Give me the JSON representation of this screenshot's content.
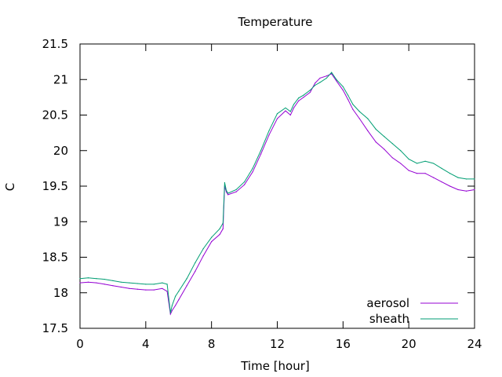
{
  "chart_data": {
    "type": "line",
    "title": "Temperature",
    "xlabel": "Time [hour]",
    "ylabel": "C",
    "xlim": [
      0,
      24
    ],
    "ylim": [
      17.5,
      21.5
    ],
    "xticks": [
      0,
      4,
      8,
      12,
      16,
      20,
      24
    ],
    "yticks": [
      17.5,
      18,
      18.5,
      19,
      19.5,
      20,
      20.5,
      21,
      21.5
    ],
    "ytick_labels": [
      "17.5",
      "18",
      "18.5",
      "19",
      "19.5",
      "20",
      "20.5",
      "21",
      "21.5"
    ],
    "legend_position": "bottom-right",
    "grid": false,
    "series": [
      {
        "name": "aerosol",
        "color": "#9400d3",
        "x": [
          0,
          0.5,
          1.0,
          1.5,
          2.0,
          2.5,
          3.0,
          3.5,
          4.0,
          4.5,
          5.0,
          5.3,
          5.5,
          5.6,
          5.8,
          6.0,
          6.5,
          7.0,
          7.5,
          8.0,
          8.5,
          8.7,
          8.8,
          8.9,
          9.0,
          9.5,
          10.0,
          10.5,
          11.0,
          11.5,
          12.0,
          12.5,
          12.8,
          13.0,
          13.3,
          13.6,
          14.0,
          14.3,
          14.6,
          15.0,
          15.3,
          15.6,
          16.0,
          16.3,
          16.6,
          17.0,
          17.5,
          18.0,
          18.5,
          19.0,
          19.5,
          20.0,
          20.5,
          21.0,
          21.5,
          22.0,
          22.5,
          23.0,
          23.5,
          24.0
        ],
        "y": [
          18.14,
          18.15,
          18.14,
          18.12,
          18.1,
          18.08,
          18.06,
          18.05,
          18.04,
          18.04,
          18.06,
          18.02,
          17.7,
          17.75,
          17.82,
          17.9,
          18.1,
          18.3,
          18.52,
          18.72,
          18.82,
          18.9,
          19.5,
          19.42,
          19.38,
          19.42,
          19.52,
          19.7,
          19.95,
          20.22,
          20.45,
          20.56,
          20.5,
          20.6,
          20.7,
          20.75,
          20.82,
          20.95,
          21.02,
          21.05,
          21.08,
          20.98,
          20.85,
          20.72,
          20.58,
          20.45,
          20.28,
          20.12,
          20.02,
          19.9,
          19.82,
          19.72,
          19.68,
          19.68,
          19.62,
          19.56,
          19.5,
          19.45,
          19.43,
          19.45
        ]
      },
      {
        "name": "sheath",
        "color": "#009e73",
        "x": [
          0,
          0.5,
          1.0,
          1.5,
          2.0,
          2.5,
          3.0,
          3.5,
          4.0,
          4.5,
          5.0,
          5.3,
          5.5,
          5.6,
          5.8,
          6.0,
          6.5,
          7.0,
          7.5,
          8.0,
          8.5,
          8.7,
          8.8,
          8.9,
          9.0,
          9.5,
          10.0,
          10.5,
          11.0,
          11.5,
          12.0,
          12.5,
          12.8,
          13.0,
          13.3,
          13.6,
          14.0,
          14.3,
          14.6,
          15.0,
          15.3,
          15.6,
          16.0,
          16.3,
          16.6,
          17.0,
          17.5,
          18.0,
          18.5,
          19.0,
          19.5,
          20.0,
          20.5,
          21.0,
          21.5,
          22.0,
          22.5,
          23.0,
          23.5,
          24.0
        ],
        "y": [
          18.2,
          18.21,
          18.2,
          18.19,
          18.17,
          18.15,
          18.14,
          18.13,
          18.12,
          18.12,
          18.14,
          18.12,
          17.72,
          17.82,
          17.95,
          18.02,
          18.2,
          18.42,
          18.62,
          18.78,
          18.9,
          18.98,
          19.55,
          19.44,
          19.4,
          19.45,
          19.56,
          19.75,
          20.0,
          20.28,
          20.52,
          20.6,
          20.55,
          20.65,
          20.74,
          20.78,
          20.85,
          20.92,
          20.96,
          21.02,
          21.1,
          21.0,
          20.9,
          20.78,
          20.65,
          20.55,
          20.45,
          20.3,
          20.2,
          20.1,
          20.0,
          19.88,
          19.82,
          19.85,
          19.82,
          19.75,
          19.68,
          19.62,
          19.6,
          19.6
        ]
      }
    ]
  }
}
